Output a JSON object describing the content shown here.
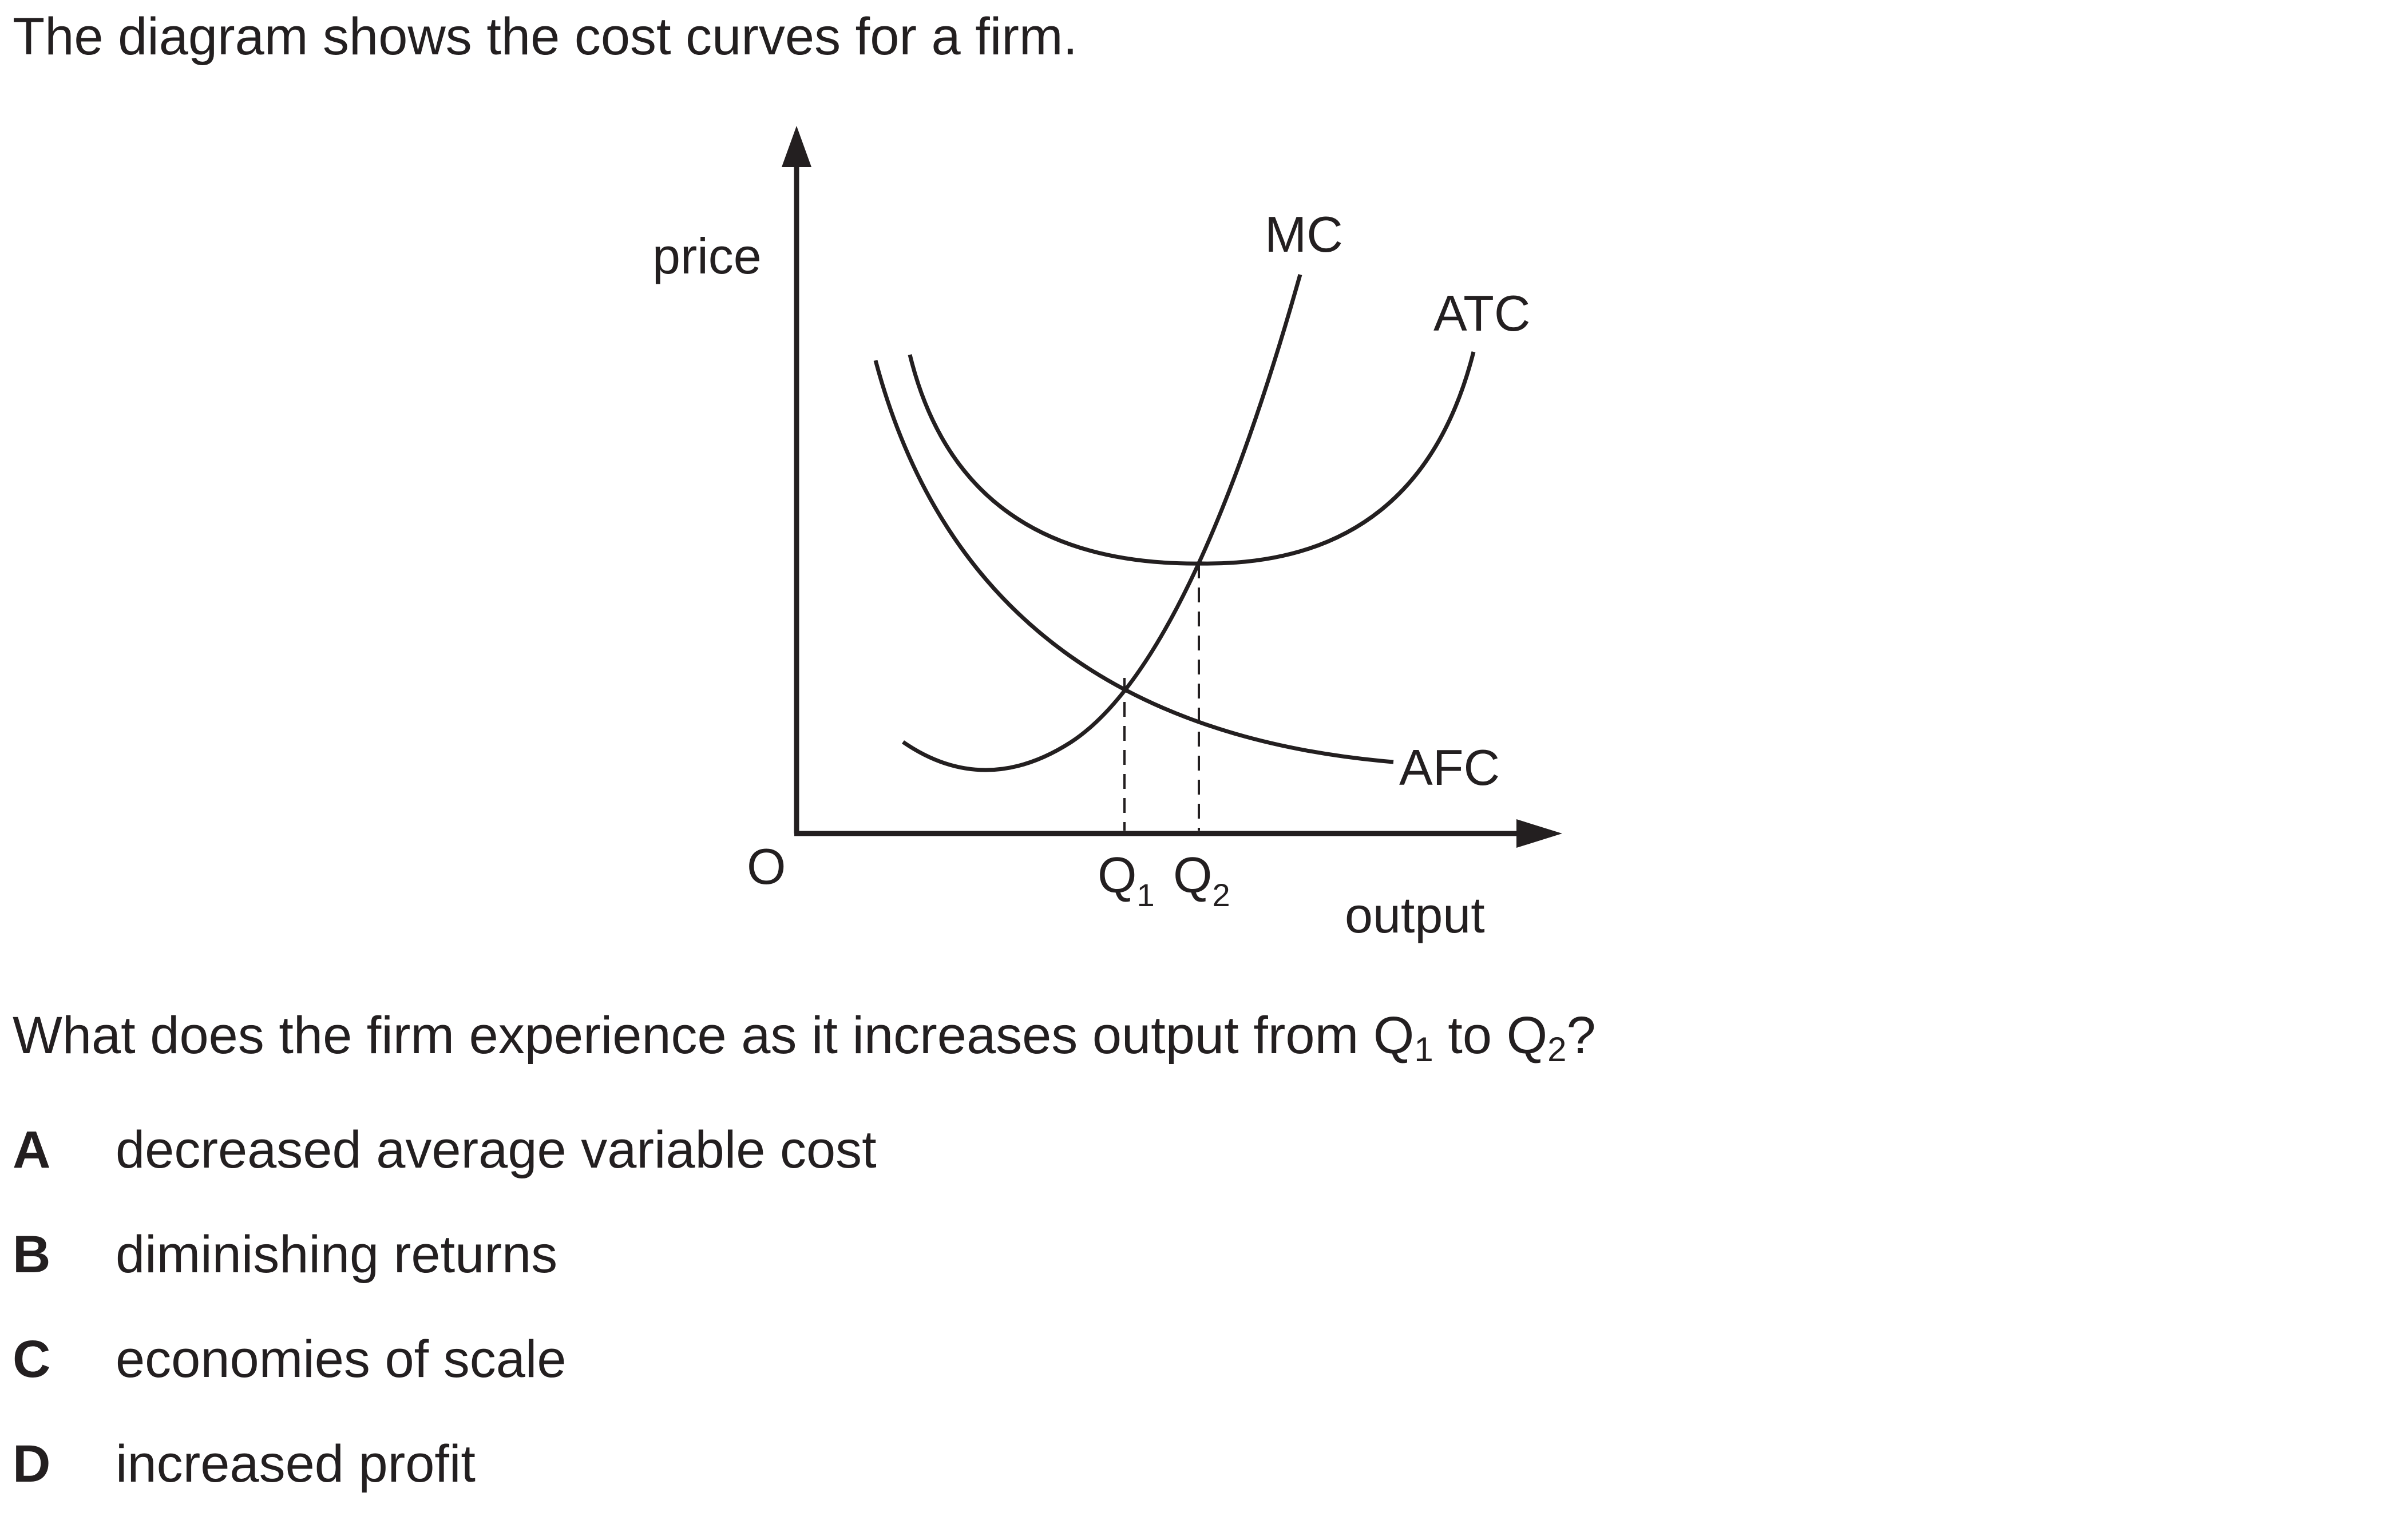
{
  "intro": "The diagram shows the cost curves for a firm.",
  "diagram": {
    "y_axis_label": "price",
    "x_axis_label": "output",
    "origin_label": "O",
    "curves": {
      "mc": "MC",
      "atc": "ATC",
      "afc": "AFC"
    },
    "markers": {
      "q1_letter": "Q",
      "q1_sub": "1",
      "q2_letter": "Q",
      "q2_sub": "2"
    }
  },
  "question": {
    "pre": "What does the firm experience as it increases output from ",
    "q1_letter": "Q",
    "q1_sub": "1",
    "mid": " to ",
    "q2_letter": "Q",
    "q2_sub": "2",
    "post": "?"
  },
  "options": [
    {
      "letter": "A",
      "text": "decreased average variable cost"
    },
    {
      "letter": "B",
      "text": "diminishing returns"
    },
    {
      "letter": "C",
      "text": "economies of scale"
    },
    {
      "letter": "D",
      "text": "increased profit"
    }
  ]
}
